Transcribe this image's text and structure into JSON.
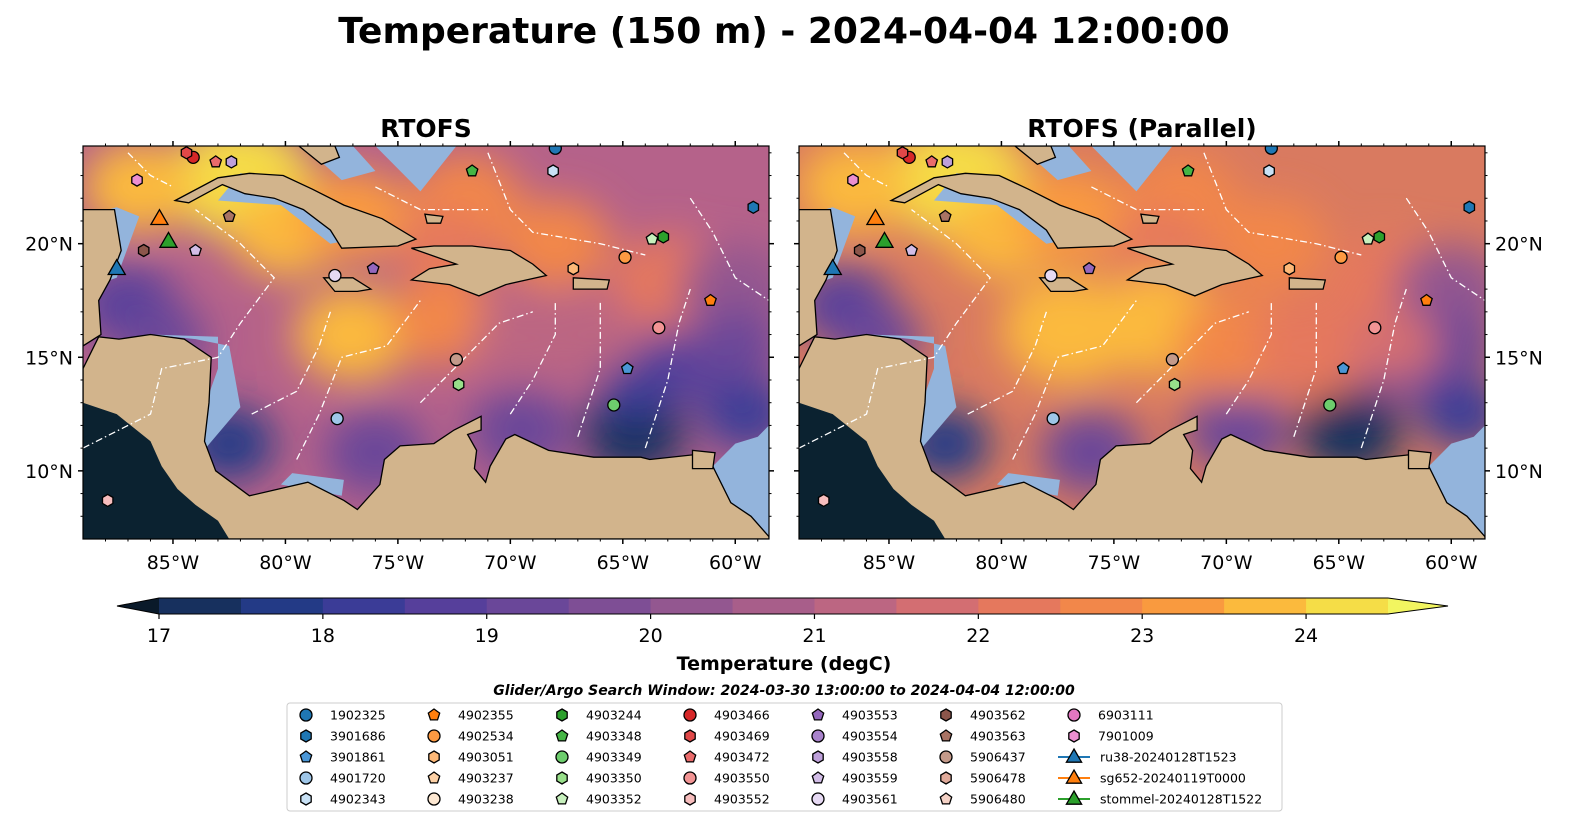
{
  "title": "Temperature (150 m) - 2024-04-04 12:00:00",
  "panels": [
    {
      "title": "RTOFS"
    },
    {
      "title": "RTOFS (Parallel)"
    }
  ],
  "axes": {
    "x_ticks": [
      {
        "value": -85,
        "label": "85°W"
      },
      {
        "value": -80,
        "label": "80°W"
      },
      {
        "value": -75,
        "label": "75°W"
      },
      {
        "value": -70,
        "label": "70°W"
      },
      {
        "value": -65,
        "label": "65°W"
      },
      {
        "value": -60,
        "label": "60°W"
      }
    ],
    "y_ticks": [
      {
        "value": 20,
        "label": "20°N"
      },
      {
        "value": 15,
        "label": "15°N"
      },
      {
        "value": 10,
        "label": "10°N"
      }
    ],
    "lon_range": [
      -89,
      -58.5
    ],
    "lat_range": [
      7,
      24.3
    ]
  },
  "colorbar": {
    "label": "Temperature (degC)",
    "range": [
      17,
      24.5
    ],
    "extend": "both",
    "ticks": [
      {
        "value": 17,
        "label": "17"
      },
      {
        "value": 18,
        "label": "18"
      },
      {
        "value": 19,
        "label": "19"
      },
      {
        "value": 20,
        "label": "20"
      },
      {
        "value": 21,
        "label": "21"
      },
      {
        "value": 22,
        "label": "22"
      },
      {
        "value": 23,
        "label": "23"
      },
      {
        "value": 24,
        "label": "24"
      }
    ],
    "colors": [
      "#0e1c35",
      "#17305e",
      "#233a86",
      "#3b3c97",
      "#563f9b",
      "#6a4799",
      "#7e4e95",
      "#935790",
      "#a85e8a",
      "#bc6682",
      "#d36e72",
      "#e5785d",
      "#f2874a",
      "#f99a3f",
      "#fbba3d",
      "#f5dd47",
      "#ecf962"
    ],
    "under_color": "#0a1a2a",
    "over_color": "#f2f560"
  },
  "search_window": "Glider/Argo Search Window: 2024-03-30 13:00:00 to 2024-04-04 12:00:00",
  "legend": {
    "columns": [
      [
        {
          "label": "1902325",
          "marker": "circle",
          "color": "#1f77b4"
        },
        {
          "label": "3901686",
          "marker": "hexagon",
          "color": "#1f77b4"
        },
        {
          "label": "3901861",
          "marker": "pentagon",
          "color": "#4a96d6"
        },
        {
          "label": "4901720",
          "marker": "circle",
          "color": "#9ec6e8"
        },
        {
          "label": "4902343",
          "marker": "hexagon",
          "color": "#c8e1f5"
        }
      ],
      [
        {
          "label": "4902355",
          "marker": "pentagon",
          "color": "#ff7f0e"
        },
        {
          "label": "4902534",
          "marker": "circle",
          "color": "#fd9a42"
        },
        {
          "label": "4903051",
          "marker": "hexagon",
          "color": "#fdb877"
        },
        {
          "label": "4903237",
          "marker": "pentagon",
          "color": "#fdd1a6"
        },
        {
          "label": "4903238",
          "marker": "circle",
          "color": "#fde8d2"
        }
      ],
      [
        {
          "label": "4903244",
          "marker": "hexagon",
          "color": "#2ca02c"
        },
        {
          "label": "4903348",
          "marker": "pentagon",
          "color": "#45b545"
        },
        {
          "label": "4903349",
          "marker": "circle",
          "color": "#6dcd6d"
        },
        {
          "label": "4903350",
          "marker": "hexagon",
          "color": "#98df8a"
        },
        {
          "label": "4903352",
          "marker": "pentagon",
          "color": "#c7f0bd"
        }
      ],
      [
        {
          "label": "4903466",
          "marker": "circle",
          "color": "#d62728"
        },
        {
          "label": "4903469",
          "marker": "hexagon",
          "color": "#e04848"
        },
        {
          "label": "4903472",
          "marker": "pentagon",
          "color": "#ea6b6b"
        },
        {
          "label": "4903550",
          "marker": "circle",
          "color": "#f29494"
        },
        {
          "label": "4903552",
          "marker": "hexagon",
          "color": "#f7bdbd"
        }
      ],
      [
        {
          "label": "4903553",
          "marker": "pentagon",
          "color": "#9467bd"
        },
        {
          "label": "4903554",
          "marker": "circle",
          "color": "#a983cc"
        },
        {
          "label": "4903558",
          "marker": "hexagon",
          "color": "#bea0da"
        },
        {
          "label": "4903559",
          "marker": "pentagon",
          "color": "#d2bde7"
        },
        {
          "label": "4903561",
          "marker": "circle",
          "color": "#e6d9f3"
        }
      ],
      [
        {
          "label": "4903562",
          "marker": "hexagon",
          "color": "#8c564b"
        },
        {
          "label": "4903563",
          "marker": "pentagon",
          "color": "#a97364"
        },
        {
          "label": "5906437",
          "marker": "circle",
          "color": "#c49a8a"
        },
        {
          "label": "5906478",
          "marker": "hexagon",
          "color": "#e0aa9a"
        },
        {
          "label": "5906480",
          "marker": "pentagon",
          "color": "#f5d2c6"
        }
      ],
      [
        {
          "label": "6903111",
          "marker": "circle",
          "color": "#e377c2"
        },
        {
          "label": "7901009",
          "marker": "hexagon",
          "color": "#ec8fd0"
        },
        {
          "label": "ru38-20240128T1523",
          "marker": "triangle-line",
          "color": "#1f77b4"
        },
        {
          "label": "sg652-20240119T0000",
          "marker": "triangle-line",
          "color": "#ff7f0e"
        },
        {
          "label": "stommel-20240128T1522",
          "marker": "triangle-line",
          "color": "#2ca02c"
        }
      ]
    ]
  },
  "observations": [
    {
      "id": "1902325",
      "lon": -68.0,
      "lat": 24.2,
      "marker": "circle",
      "color": "#1f77b4"
    },
    {
      "id": "3901686",
      "lon": -59.2,
      "lat": 21.6,
      "marker": "hexagon",
      "color": "#1f77b4"
    },
    {
      "id": "3901861",
      "lon": -64.8,
      "lat": 14.5,
      "marker": "pentagon",
      "color": "#4a96d6"
    },
    {
      "id": "4901720",
      "lon": -77.7,
      "lat": 12.3,
      "marker": "circle",
      "color": "#9ec6e8"
    },
    {
      "id": "4902343",
      "lon": -68.1,
      "lat": 23.2,
      "marker": "hexagon",
      "color": "#c8e1f5"
    },
    {
      "id": "4902355",
      "lon": -61.1,
      "lat": 17.5,
      "marker": "pentagon",
      "color": "#ff7f0e"
    },
    {
      "id": "4902534",
      "lon": -64.9,
      "lat": 19.4,
      "marker": "circle",
      "color": "#fd9a42"
    },
    {
      "id": "4903051",
      "lon": -67.2,
      "lat": 18.9,
      "marker": "hexagon",
      "color": "#fdb877"
    },
    {
      "id": "4903244",
      "lon": -63.2,
      "lat": 20.3,
      "marker": "hexagon",
      "color": "#2ca02c"
    },
    {
      "id": "4903348",
      "lon": -71.7,
      "lat": 23.2,
      "marker": "pentagon",
      "color": "#45b545"
    },
    {
      "id": "4903349",
      "lon": -65.4,
      "lat": 12.9,
      "marker": "circle",
      "color": "#6dcd6d"
    },
    {
      "id": "4903350",
      "lon": -72.3,
      "lat": 13.8,
      "marker": "hexagon",
      "color": "#98df8a"
    },
    {
      "id": "4903352",
      "lon": -63.7,
      "lat": 20.2,
      "marker": "pentagon",
      "color": "#c7f0bd"
    },
    {
      "id": "4903466",
      "lon": -84.1,
      "lat": 23.8,
      "marker": "circle",
      "color": "#d62728"
    },
    {
      "id": "4903469",
      "lon": -84.4,
      "lat": 24.0,
      "marker": "hexagon",
      "color": "#e04848"
    },
    {
      "id": "4903472",
      "lon": -83.1,
      "lat": 23.6,
      "marker": "pentagon",
      "color": "#ea6b6b"
    },
    {
      "id": "4903550",
      "lon": -63.4,
      "lat": 16.3,
      "marker": "circle",
      "color": "#f29494"
    },
    {
      "id": "4903552",
      "lon": -87.9,
      "lat": 8.7,
      "marker": "hexagon",
      "color": "#f7bdbd"
    },
    {
      "id": "4903553",
      "lon": -76.1,
      "lat": 18.9,
      "marker": "pentagon",
      "color": "#9467bd"
    },
    {
      "id": "4903558",
      "lon": -82.4,
      "lat": 23.6,
      "marker": "hexagon",
      "color": "#bea0da"
    },
    {
      "id": "4903559",
      "lon": -84.0,
      "lat": 19.7,
      "marker": "pentagon",
      "color": "#d2bde7"
    },
    {
      "id": "4903561",
      "lon": -77.8,
      "lat": 18.6,
      "marker": "circle",
      "color": "#e6d9f3"
    },
    {
      "id": "4903562",
      "lon": -86.3,
      "lat": 19.7,
      "marker": "hexagon",
      "color": "#8c564b"
    },
    {
      "id": "4903563",
      "lon": -82.5,
      "lat": 21.2,
      "marker": "pentagon",
      "color": "#a97364"
    },
    {
      "id": "5906437",
      "lon": -72.4,
      "lat": 14.9,
      "marker": "circle",
      "color": "#c49a8a"
    },
    {
      "id": "7901009",
      "lon": -86.6,
      "lat": 22.8,
      "marker": "hexagon",
      "color": "#ec8fd0"
    },
    {
      "id": "ru38-20240128T1523",
      "lon": -87.5,
      "lat": 18.9,
      "marker": "triangle",
      "color": "#1f77b4"
    },
    {
      "id": "sg652-20240119T0000",
      "lon": -85.6,
      "lat": 21.1,
      "marker": "triangle",
      "color": "#ff7f0e"
    },
    {
      "id": "stommel-20240128T1522",
      "lon": -85.2,
      "lat": 20.1,
      "marker": "triangle",
      "color": "#2ca02c"
    }
  ],
  "land_color": "#d2b48c",
  "shelf_color": "#93b4dc"
}
